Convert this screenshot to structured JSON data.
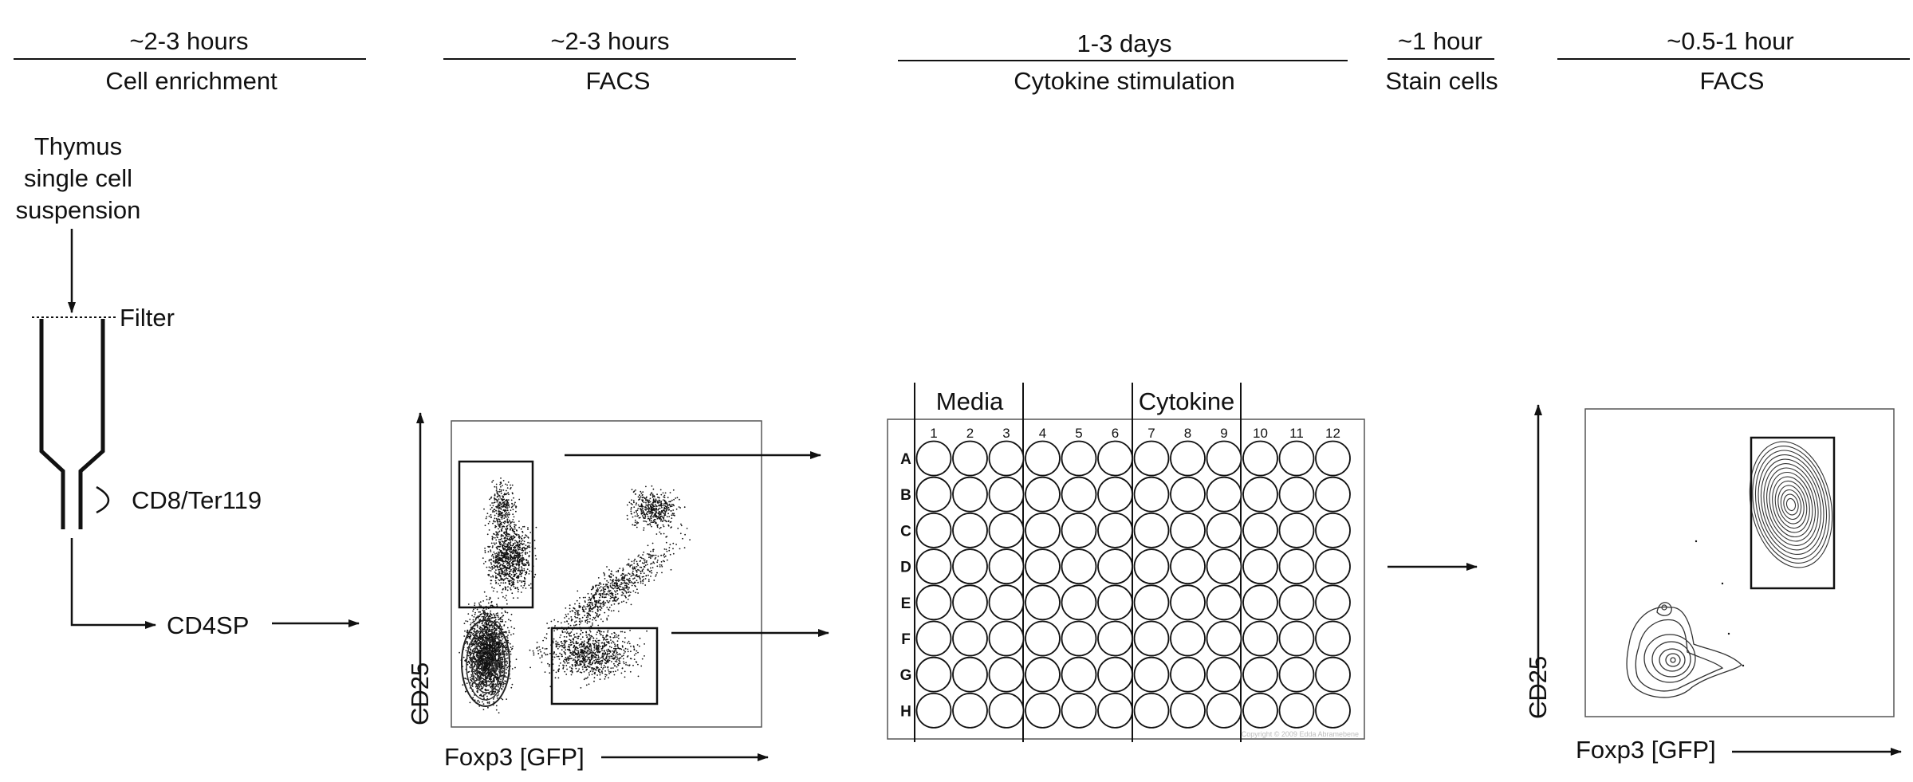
{
  "steps": [
    {
      "time": "~2-3 hours",
      "title": "Cell enrichment"
    },
    {
      "time": "~2-3 hours",
      "title": "FACS"
    },
    {
      "time": "1-3 days",
      "title": "Cytokine stimulation"
    },
    {
      "time": "~1 hour",
      "title": "Stain cells"
    },
    {
      "time": "~0.5-1 hour",
      "title": "FACS"
    }
  ],
  "enrichment": {
    "source_lines": [
      "Thymus",
      "single cell",
      "suspension"
    ],
    "filter_label": "Filter",
    "depletion_label": "CD8/Ter119",
    "output_label": "CD4SP"
  },
  "facs_sort": {
    "y_axis": "CD25",
    "x_axis": "Foxp3 [GFP]"
  },
  "plate": {
    "group_labels": [
      "Media",
      "Cytokine"
    ],
    "columns": [
      "1",
      "2",
      "3",
      "4",
      "5",
      "6",
      "7",
      "8",
      "9",
      "10",
      "11",
      "12"
    ],
    "rows": [
      "A",
      "B",
      "C",
      "D",
      "E",
      "F",
      "G",
      "H"
    ],
    "watermark": "Copyright © 2009 Edda Abramebene"
  },
  "facs_analysis": {
    "y_axis": "CD25",
    "x_axis": "Foxp3 [GFP]"
  }
}
